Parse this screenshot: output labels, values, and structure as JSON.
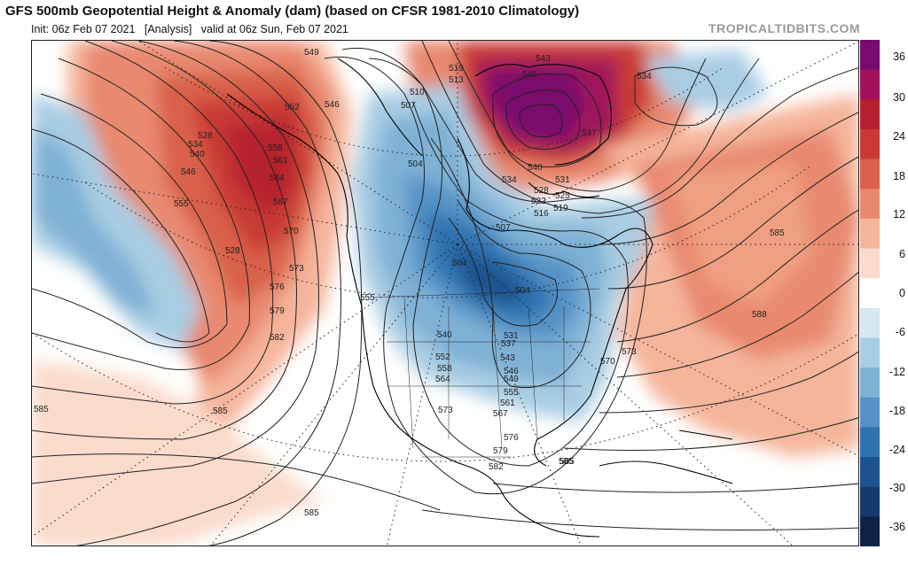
{
  "header": {
    "title": "GFS 500mb Geopotential Height & Anomaly (dam) (based on CFSR 1981-2010 Climatology)",
    "init": "Init: 06z Feb 07 2021",
    "analysis": "[Analysis]",
    "valid": "valid at 06z Sun, Feb 07 2021",
    "credit": "TROPICALTIDBITS.COM"
  },
  "colorbar": {
    "ticks": [
      "36",
      "30",
      "24",
      "18",
      "12",
      "6",
      "0",
      "-6",
      "-12",
      "-18",
      "-24",
      "-30",
      "-36"
    ],
    "colors": [
      "#7a0a6e",
      "#a0135a",
      "#b5202f",
      "#c93a35",
      "#d9614a",
      "#e8896f",
      "#f5b59b",
      "#fbdccc",
      "#ffffff",
      "#d6e8f2",
      "#a9cde3",
      "#7fb1d6",
      "#5593c6",
      "#2f72b0",
      "#1b528f",
      "#153a6e",
      "#0c2247"
    ]
  },
  "map": {
    "contour_labels": [
      "549",
      "552",
      "546",
      "528",
      "519",
      "513",
      "510",
      "507",
      "504",
      "546",
      "543",
      "534",
      "537",
      "540",
      "534",
      "531",
      "528",
      "525",
      "522",
      "519",
      "516",
      "507",
      "504",
      "504",
      "528",
      "534",
      "540",
      "546",
      "555",
      "555",
      "558",
      "561",
      "564",
      "567",
      "570",
      "573",
      "576",
      "579",
      "582",
      "585",
      "585",
      "585",
      "585",
      "588",
      "585",
      "573",
      "570",
      "540",
      "537",
      "543",
      "546",
      "549",
      "552",
      "555",
      "558",
      "561",
      "564",
      "567",
      "531",
      "573",
      "576",
      "579",
      "582",
      "585"
    ]
  }
}
